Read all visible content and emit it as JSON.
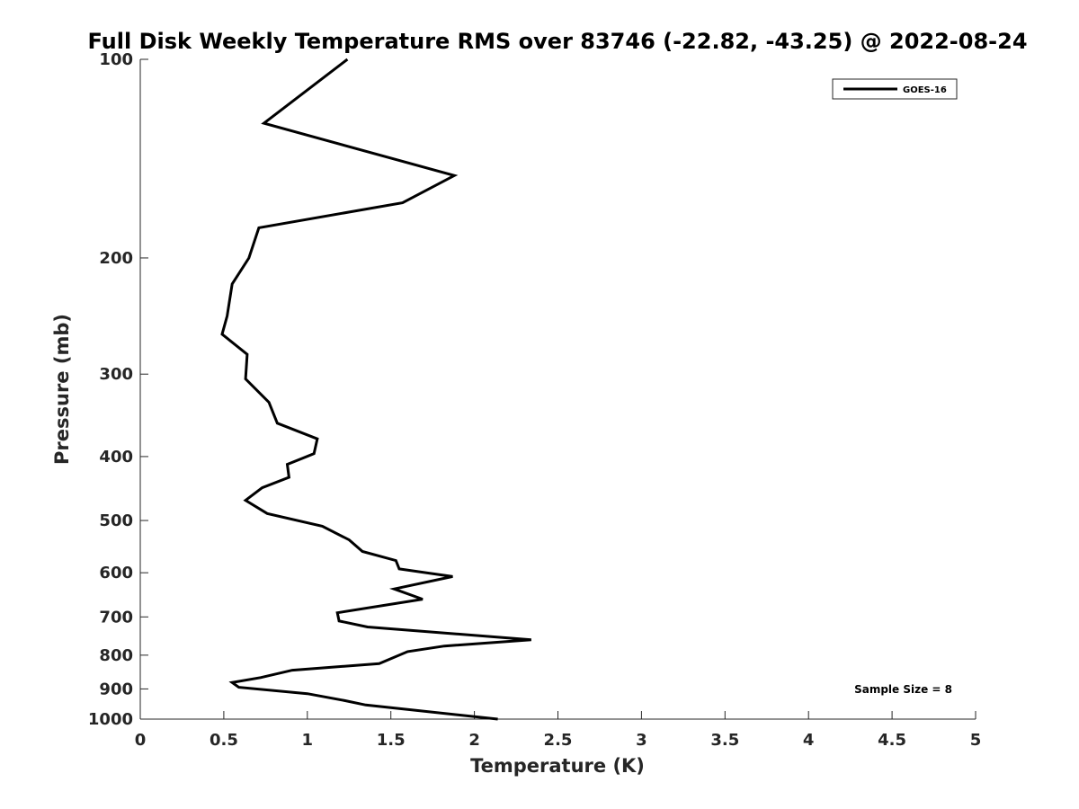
{
  "chart_data": {
    "type": "line",
    "title": "Full Disk Weekly Temperature RMS over 83746 (-22.82, -43.25) @ 2022-08-24",
    "xlabel": "Temperature (K)",
    "ylabel": "Pressure (mb)",
    "xlim": [
      0,
      5
    ],
    "ylim": [
      1000,
      100
    ],
    "yscale": "log",
    "y_reversed": true,
    "grid": false,
    "legend_position": "top-right",
    "x_ticks": [
      "0",
      "0.5",
      "1",
      "1.5",
      "2",
      "2.5",
      "3",
      "3.5",
      "4",
      "4.5",
      "5"
    ],
    "x_tick_values": [
      0,
      0.5,
      1,
      1.5,
      2,
      2.5,
      3,
      3.5,
      4,
      4.5,
      5
    ],
    "y_ticks": [
      "100",
      "200",
      "300",
      "400",
      "500",
      "600",
      "700",
      "800",
      "900",
      "1000"
    ],
    "y_tick_values": [
      100,
      200,
      300,
      400,
      500,
      600,
      700,
      800,
      900,
      1000
    ],
    "series": [
      {
        "name": "GOES-16",
        "color": "#000000",
        "points": [
          [
            1.24,
            100
          ],
          [
            0.74,
            125
          ],
          [
            1.88,
            150
          ],
          [
            1.57,
            165
          ],
          [
            0.71,
            180
          ],
          [
            0.65,
            200
          ],
          [
            0.55,
            219
          ],
          [
            0.52,
            245
          ],
          [
            0.49,
            261
          ],
          [
            0.64,
            280
          ],
          [
            0.63,
            305
          ],
          [
            0.77,
            331
          ],
          [
            0.82,
            356
          ],
          [
            1.06,
            376
          ],
          [
            1.04,
            396
          ],
          [
            0.88,
            411
          ],
          [
            0.89,
            430
          ],
          [
            0.73,
            446
          ],
          [
            0.63,
            466
          ],
          [
            0.76,
            488
          ],
          [
            1.09,
            510
          ],
          [
            1.25,
            535
          ],
          [
            1.33,
            557
          ],
          [
            1.53,
            575
          ],
          [
            1.55,
            592
          ],
          [
            1.87,
            608
          ],
          [
            1.52,
            635
          ],
          [
            1.69,
            658
          ],
          [
            1.18,
            690
          ],
          [
            1.19,
            710
          ],
          [
            1.36,
            725
          ],
          [
            2.34,
            758
          ],
          [
            1.82,
            775
          ],
          [
            1.6,
            790
          ],
          [
            1.43,
            824
          ],
          [
            0.91,
            843
          ],
          [
            0.72,
            865
          ],
          [
            0.55,
            880
          ],
          [
            0.59,
            895
          ],
          [
            1.0,
            915
          ],
          [
            1.23,
            938
          ],
          [
            1.35,
            952
          ],
          [
            2.14,
            1000
          ]
        ]
      }
    ],
    "annotations": [
      {
        "text": "Sample Size = 8",
        "position": "bottom-right"
      }
    ]
  }
}
